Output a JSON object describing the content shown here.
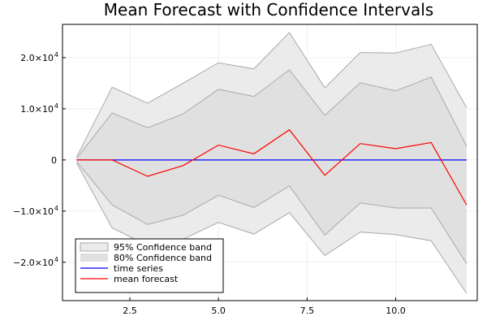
{
  "chart_data": {
    "type": "line",
    "title": "Mean Forecast with Confidence Intervals",
    "xlabel": "",
    "ylabel": "",
    "xlim": [
      0.6,
      12.3
    ],
    "ylim": [
      -27500,
      26500
    ],
    "x": [
      1,
      2,
      3,
      4,
      5,
      6,
      7,
      8,
      9,
      10,
      11,
      12
    ],
    "x_ticks": [
      {
        "value": 2.5,
        "label": "2.5"
      },
      {
        "value": 5.0,
        "label": "5.0"
      },
      {
        "value": 7.5,
        "label": "7.5"
      },
      {
        "value": 10.0,
        "label": "10.0"
      }
    ],
    "y_ticks": [
      {
        "value": 20000,
        "mant": "2.0×10",
        "exp": "4"
      },
      {
        "value": 10000,
        "mant": "1.0×10",
        "exp": "4"
      },
      {
        "value": 0,
        "mant": "0",
        "exp": ""
      },
      {
        "value": -10000,
        "mant": "−1.0×10",
        "exp": "4"
      },
      {
        "value": -20000,
        "mant": "−2.0×10",
        "exp": "4"
      }
    ],
    "grid": true,
    "legend_position": "bottom-left",
    "series": [
      {
        "name": "95% Confidence band",
        "kind": "band",
        "color": "#a9a9a9",
        "fill": "#ebebeb",
        "upper": [
          600,
          14200,
          11100,
          15000,
          19000,
          17800,
          24900,
          14100,
          21000,
          20900,
          22600,
          10200
        ],
        "lower": [
          -600,
          -13300,
          -16700,
          -15500,
          -12200,
          -14500,
          -10300,
          -18700,
          -14100,
          -14600,
          -15800,
          -26100
        ]
      },
      {
        "name": "80% Confidence band",
        "kind": "band",
        "color": "#a9a9a9",
        "fill": "#e0e0e0",
        "upper": [
          300,
          9200,
          6300,
          9000,
          13800,
          12400,
          17600,
          8700,
          15100,
          13500,
          16200,
          2700
        ],
        "lower": [
          -300,
          -8800,
          -12600,
          -10800,
          -6900,
          -9300,
          -5100,
          -14700,
          -8400,
          -9400,
          -9400,
          -20300
        ]
      },
      {
        "name": "time series",
        "kind": "line",
        "color": "#0000ff",
        "values": [
          0,
          0,
          0,
          0,
          0,
          0,
          0,
          0,
          0,
          0,
          0,
          0
        ]
      },
      {
        "name": "mean forecast",
        "kind": "line",
        "color": "#ff0000",
        "values": [
          0,
          0,
          -3200,
          -1100,
          2900,
          1200,
          5900,
          -3000,
          3200,
          2200,
          3400,
          -8800
        ]
      }
    ]
  }
}
